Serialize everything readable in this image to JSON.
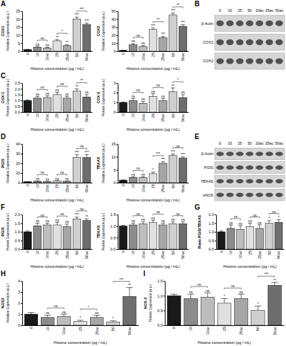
{
  "chart_data": [
    {
      "type": "bar",
      "panel": "A",
      "title": "COX1",
      "y_label": "Relative Expression (a.u.)",
      "x_label": "Histone concentration (µg / mL)",
      "categories": [
        "0",
        "10",
        "10ac",
        "25",
        "25ac",
        "50",
        "50ac"
      ],
      "values": [
        1,
        2.5,
        2,
        6.5,
        3.5,
        20,
        16.5
      ],
      "errors": [
        0.2,
        0.5,
        0.4,
        0.8,
        0.5,
        1.2,
        1
      ],
      "colors": [
        "#1a1a1a",
        "#8c8c8c",
        "#bdbdbd",
        "#e0e0e0",
        "#a6a6a6",
        "#cfcfcf",
        "#6e6e6e"
      ],
      "ylim": [
        0,
        25
      ],
      "yticks": [
        0,
        5,
        10,
        15,
        20,
        25
      ],
      "significance": [
        null,
        "ns",
        "ns",
        "**",
        "**",
        "***",
        "***"
      ],
      "comparisons": [
        {
          "from": 1,
          "to": 2,
          "label": "ns"
        },
        {
          "from": 3,
          "to": 4,
          "label": "*"
        },
        {
          "from": 5,
          "to": 6,
          "label": "***"
        }
      ]
    },
    {
      "type": "bar",
      "title": "COX2",
      "y_label": "Relative Expression (a.u.)",
      "x_label": "Histone concentration (µg / mL)",
      "categories": [
        "0",
        "10",
        "10ac",
        "25",
        "25ac",
        "50",
        "50ac"
      ],
      "values": [
        1,
        8,
        6,
        27,
        17,
        45,
        31
      ],
      "errors": [
        0.2,
        1.5,
        1,
        2,
        1.5,
        2.5,
        2
      ],
      "colors": [
        "#1a1a1a",
        "#8c8c8c",
        "#bdbdbd",
        "#e0e0e0",
        "#a6a6a6",
        "#cfcfcf",
        "#6e6e6e"
      ],
      "ylim": [
        0,
        50
      ],
      "yticks": [
        0,
        10,
        20,
        30,
        40,
        50
      ],
      "significance": [
        null,
        "ns",
        "ns",
        "***",
        "***",
        "***",
        "***"
      ],
      "comparisons": [
        {
          "from": 1,
          "to": 2,
          "label": "ns"
        },
        {
          "from": 3,
          "to": 4,
          "label": "**"
        },
        {
          "from": 5,
          "to": 6,
          "label": "**"
        }
      ]
    },
    {
      "type": "blot",
      "panel": "B",
      "lanes": [
        "0",
        "10",
        "25",
        "50",
        "10ac",
        "25ac",
        "50ac"
      ],
      "rows": [
        "β-Actin",
        "COX1",
        "COX2"
      ]
    },
    {
      "type": "bar",
      "panel": "C",
      "title": "COX-1",
      "y_label": "Protein Expression (a.u.)",
      "x_label": "Histone concentration (µg / mL)",
      "categories": [
        "0",
        "10",
        "10ac",
        "25",
        "25ac",
        "50",
        "50ac"
      ],
      "values": [
        1,
        1.2,
        1.25,
        1.5,
        1.2,
        1.8,
        1.3
      ],
      "errors": [
        0.05,
        0.15,
        0.15,
        0.2,
        0.15,
        0.2,
        0.2
      ],
      "colors": [
        "#1a1a1a",
        "#8c8c8c",
        "#bdbdbd",
        "#e0e0e0",
        "#a6a6a6",
        "#cfcfcf",
        "#6e6e6e"
      ],
      "ylim": [
        0,
        2.5
      ],
      "yticks": [
        {
          "value": 0,
          "label": "0.0"
        },
        {
          "value": 0.5,
          "label": "0.5"
        },
        {
          "value": 1,
          "label": "1.0"
        },
        {
          "value": 1.5,
          "label": "1.5"
        },
        {
          "value": 2,
          "label": "2.0"
        },
        {
          "value": 2.5,
          "label": "2.5"
        }
      ],
      "significance": [
        null,
        "ns",
        "ns",
        "ns",
        "ns",
        "**",
        "ns"
      ],
      "comparisons": [
        {
          "from": 1,
          "to": 2,
          "label": "ns"
        },
        {
          "from": 3,
          "to": 4,
          "label": "ns"
        },
        {
          "from": 5,
          "to": 6,
          "label": "**"
        }
      ]
    },
    {
      "type": "bar",
      "title": "COX-2",
      "y_label": "Protein Expression (a.u.)",
      "x_label": "Histone concentration (µg / mL)",
      "categories": [
        "0",
        "10",
        "10ac",
        "25",
        "25ac",
        "50",
        "50ac"
      ],
      "values": [
        1,
        1.2,
        0.9,
        1.6,
        1.2,
        2.1,
        1.5
      ],
      "errors": [
        0.05,
        0.2,
        0.2,
        0.3,
        0.2,
        0.4,
        0.3
      ],
      "colors": [
        "#1a1a1a",
        "#8c8c8c",
        "#bdbdbd",
        "#e0e0e0",
        "#a6a6a6",
        "#cfcfcf",
        "#6e6e6e"
      ],
      "ylim": [
        0,
        3
      ],
      "yticks": [
        0,
        1,
        2,
        3
      ],
      "significance": [
        null,
        "ns",
        "ns",
        "ns",
        "ns",
        "**",
        "ns"
      ],
      "comparisons": [
        {
          "from": 1,
          "to": 2,
          "label": "ns"
        },
        {
          "from": 3,
          "to": 4,
          "label": "ns"
        },
        {
          "from": 5,
          "to": 6,
          "label": "*"
        }
      ]
    },
    {
      "type": "bar",
      "panel": "D",
      "title": "PGIS",
      "y_label": "Relative Expression (a.u.)",
      "x_label": "Histone concentration (µg / mL)",
      "categories": [
        "0",
        "10",
        "10ac",
        "25",
        "25ac",
        "50",
        "50ac"
      ],
      "values": [
        1,
        1.5,
        1.2,
        1.8,
        1.5,
        26,
        26
      ],
      "errors": [
        0.1,
        0.3,
        0.2,
        0.3,
        0.3,
        3,
        3
      ],
      "colors": [
        "#1a1a1a",
        "#8c8c8c",
        "#bdbdbd",
        "#e0e0e0",
        "#a6a6a6",
        "#cfcfcf",
        "#6e6e6e"
      ],
      "ylim": [
        0,
        40
      ],
      "yticks": [
        0,
        10,
        20,
        30,
        40
      ],
      "significance": [
        null,
        "ns",
        "ns",
        "ns",
        "ns",
        "***",
        "***"
      ],
      "comparisons": [
        {
          "from": 1,
          "to": 2,
          "label": "ns"
        },
        {
          "from": 3,
          "to": 4,
          "label": "ns"
        },
        {
          "from": 5,
          "to": 6,
          "label": "ns"
        }
      ]
    },
    {
      "type": "bar",
      "title": "TBXAS",
      "y_label": "Relative Expression (a.u.)",
      "x_label": "Histone concentration (µg / mL)",
      "categories": [
        "0",
        "10",
        "10ac",
        "25",
        "25ac",
        "50",
        "50ac"
      ],
      "values": [
        1,
        2,
        2,
        3.5,
        7.5,
        10.5,
        9.5
      ],
      "errors": [
        0.1,
        0.3,
        0.3,
        0.6,
        0.6,
        0.6,
        0.5
      ],
      "colors": [
        "#1a1a1a",
        "#8c8c8c",
        "#bdbdbd",
        "#e0e0e0",
        "#a6a6a6",
        "#cfcfcf",
        "#6e6e6e"
      ],
      "ylim": [
        0,
        15
      ],
      "yticks": [
        0,
        5,
        10,
        15
      ],
      "significance": [
        null,
        "ns",
        "ns",
        "*",
        "***",
        "***",
        "***"
      ],
      "comparisons": [
        {
          "from": 1,
          "to": 2,
          "label": "ns"
        },
        {
          "from": 3,
          "to": 4,
          "label": "***"
        },
        {
          "from": 5,
          "to": 6,
          "label": "ns"
        }
      ]
    },
    {
      "type": "blot",
      "panel": "E",
      "lanes": [
        "0",
        "10",
        "25",
        "50",
        "10ac",
        "25ac",
        "50ac"
      ],
      "rows": [
        "β-Actin",
        "PGIS",
        "TBXAS",
        "eNOS"
      ]
    },
    {
      "type": "bar",
      "panel": "F",
      "title": "PGIS",
      "y_label": "Protein Expression (a.u.)",
      "x_label": "Histone concentration (µg / mL)",
      "categories": [
        "0",
        "10",
        "10ac",
        "25",
        "25ac",
        "50",
        "50ac"
      ],
      "values": [
        1,
        1.35,
        1.4,
        1.4,
        1.3,
        1.75,
        1.65
      ],
      "errors": [
        0.05,
        0.15,
        0.1,
        0.15,
        0.15,
        0.1,
        0.1
      ],
      "colors": [
        "#1a1a1a",
        "#8c8c8c",
        "#bdbdbd",
        "#e0e0e0",
        "#a6a6a6",
        "#cfcfcf",
        "#6e6e6e"
      ],
      "ylim": [
        0,
        2
      ],
      "yticks": [
        {
          "value": 0,
          "label": "0.0"
        },
        {
          "value": 0.5,
          "label": "0.5"
        },
        {
          "value": 1,
          "label": "1.0"
        },
        {
          "value": 1.5,
          "label": "1.5"
        },
        {
          "value": 2,
          "label": "2.0"
        }
      ],
      "significance": [
        null,
        "ns",
        "ns",
        "ns",
        "ns",
        "***",
        "**"
      ],
      "comparisons": [
        {
          "from": 1,
          "to": 2,
          "label": "ns"
        },
        {
          "from": 3,
          "to": 4,
          "label": "ns"
        },
        {
          "from": 5,
          "to": 6,
          "label": "ns"
        }
      ]
    },
    {
      "type": "bar",
      "title": "TBXAS",
      "y_label": "Protein Expression (a.u.)",
      "x_label": "Histone concentration (µg / mL)",
      "categories": [
        "0",
        "10",
        "10ac",
        "25",
        "25ac",
        "50",
        "50ac"
      ],
      "values": [
        1,
        1.05,
        1.1,
        1.15,
        1.05,
        1.1,
        1.1
      ],
      "errors": [
        0.03,
        0.08,
        0.08,
        0.1,
        0.08,
        0.08,
        0.08
      ],
      "colors": [
        "#1a1a1a",
        "#8c8c8c",
        "#bdbdbd",
        "#e0e0e0",
        "#a6a6a6",
        "#cfcfcf",
        "#6e6e6e"
      ],
      "ylim": [
        0,
        1.5
      ],
      "yticks": [
        {
          "value": 0,
          "label": "0.0"
        },
        {
          "value": 0.5,
          "label": "0.5"
        },
        {
          "value": 1,
          "label": "1.0"
        },
        {
          "value": 1.5,
          "label": "1.5"
        }
      ],
      "significance": [
        null,
        "ns",
        "ns",
        "ns",
        "ns",
        "ns",
        "ns"
      ],
      "comparisons": [
        {
          "from": 1,
          "to": 2,
          "label": "ns"
        },
        {
          "from": 3,
          "to": 4,
          "label": "ns"
        },
        {
          "from": 5,
          "to": 6,
          "label": "ns"
        }
      ]
    },
    {
      "type": "bar",
      "panel": "G",
      "title": "Ratio PGIS/TBXAS",
      "x_label": "Histone concentration (µg / mL)",
      "categories": [
        "0",
        "10",
        "10ac",
        "25",
        "25ac",
        "50",
        "50ac"
      ],
      "values": [
        1,
        1.2,
        1.15,
        1.3,
        1.2,
        1.5,
        1.55
      ],
      "errors": [
        0.05,
        0.2,
        0.2,
        0.2,
        0.2,
        0.15,
        0.15
      ],
      "colors": [
        "#1a1a1a",
        "#8c8c8c",
        "#bdbdbd",
        "#e0e0e0",
        "#a6a6a6",
        "#cfcfcf",
        "#6e6e6e"
      ],
      "ylim": [
        0,
        2
      ],
      "yticks": [
        {
          "value": 0,
          "label": "0.0"
        },
        {
          "value": 0.5,
          "label": "0.5"
        },
        {
          "value": 1,
          "label": "1.0"
        },
        {
          "value": 1.5,
          "label": "1.5"
        },
        {
          "value": 2,
          "label": "2.0"
        }
      ],
      "significance": [
        null,
        "ns",
        "ns",
        "ns",
        "ns",
        "*",
        "*"
      ],
      "comparisons": [
        {
          "from": 1,
          "to": 2,
          "label": "ns"
        },
        {
          "from": 3,
          "to": 4,
          "label": "ns"
        },
        {
          "from": 5,
          "to": 6,
          "label": "ns"
        }
      ]
    },
    {
      "type": "bar",
      "panel": "H",
      "title": "NOS3",
      "y_label": "Relative Expression (a.u.)",
      "x_label": "Histone concentration (µg / mL)",
      "categories": [
        "0",
        "10",
        "10ac",
        "25",
        "25ac",
        "50",
        "50ac"
      ],
      "values": [
        1,
        0.7,
        0.8,
        0.35,
        0.7,
        0.3,
        2.6
      ],
      "errors": [
        0.15,
        0.2,
        0.2,
        0.1,
        0.2,
        0.1,
        0.8
      ],
      "colors": [
        "#1a1a1a",
        "#8c8c8c",
        "#bdbdbd",
        "#e0e0e0",
        "#a6a6a6",
        "#cfcfcf",
        "#6e6e6e"
      ],
      "ylim": [
        0,
        4
      ],
      "yticks": [
        0,
        1,
        2,
        3,
        4
      ],
      "significance": [
        null,
        "ns",
        "ns",
        "*",
        "ns",
        "*",
        "**"
      ],
      "comparisons": [
        {
          "from": 1,
          "to": 2,
          "label": "ns"
        },
        {
          "from": 3,
          "to": 4,
          "label": "*"
        },
        {
          "from": 5,
          "to": 6,
          "label": "***"
        }
      ]
    },
    {
      "type": "bar",
      "panel": "I",
      "title": "NOS-3",
      "y_label": "Protein Expression (a.u.)",
      "x_label": "Histone concentration (µg / mL)",
      "categories": [
        "0",
        "10",
        "10ac",
        "25",
        "25ac",
        "50",
        "50ac"
      ],
      "values": [
        1,
        0.9,
        0.95,
        0.75,
        0.9,
        0.5,
        1.35
      ],
      "errors": [
        0.05,
        0.15,
        0.15,
        0.15,
        0.15,
        0.15,
        0.1
      ],
      "colors": [
        "#1a1a1a",
        "#8c8c8c",
        "#bdbdbd",
        "#e0e0e0",
        "#a6a6a6",
        "#cfcfcf",
        "#6e6e6e"
      ],
      "ylim": [
        0,
        1.5
      ],
      "yticks": [
        {
          "value": 0,
          "label": "0.0"
        },
        {
          "value": 0.5,
          "label": "0.5"
        },
        {
          "value": 1,
          "label": "1.0"
        },
        {
          "value": 1.5,
          "label": "1.5"
        }
      ],
      "significance": [
        null,
        "ns",
        "ns",
        "*",
        "ns",
        "*",
        "**"
      ],
      "comparisons": [
        {
          "from": 1,
          "to": 2,
          "label": "ns"
        },
        {
          "from": 3,
          "to": 4,
          "label": "ns"
        },
        {
          "from": 5,
          "to": 6,
          "label": "***"
        }
      ]
    }
  ]
}
